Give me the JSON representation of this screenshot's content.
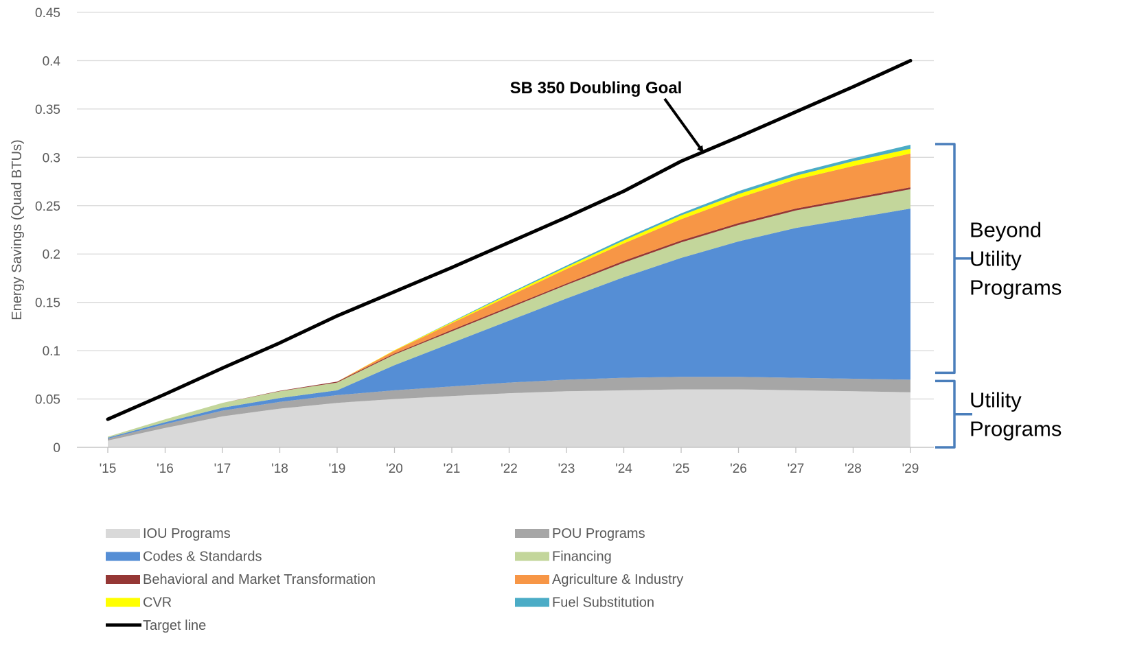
{
  "chart_data": {
    "type": "area",
    "stacked": true,
    "title": "",
    "xlabel": "",
    "ylabel": "Energy Savings (Quad BTUs)",
    "ylim": [
      0,
      0.45
    ],
    "yticks": [
      "0",
      "0.05",
      "0.1",
      "0.15",
      "0.2",
      "0.25",
      "0.3",
      "0.35",
      "0.4",
      "0.45"
    ],
    "categories": [
      "'15",
      "'16",
      "'17",
      "'18",
      "'19",
      "'20",
      "'21",
      "'22",
      "'23",
      "'24",
      "'25",
      "'26",
      "'27",
      "'28",
      "'29"
    ],
    "grid": true,
    "legend_position": "bottom",
    "series": [
      {
        "name": "IOU Programs",
        "color": "#D9D9D9",
        "values": [
          0.007,
          0.02,
          0.032,
          0.04,
          0.046,
          0.05,
          0.053,
          0.056,
          0.058,
          0.059,
          0.06,
          0.06,
          0.059,
          0.058,
          0.057
        ]
      },
      {
        "name": "POU Programs",
        "color": "#A6A6A6",
        "values": [
          0.002,
          0.004,
          0.006,
          0.007,
          0.008,
          0.009,
          0.01,
          0.011,
          0.012,
          0.013,
          0.013,
          0.013,
          0.013,
          0.013,
          0.013
        ]
      },
      {
        "name": "Codes & Standards",
        "color": "#558ED5",
        "values": [
          0.001,
          0.002,
          0.003,
          0.004,
          0.005,
          0.026,
          0.045,
          0.064,
          0.084,
          0.104,
          0.123,
          0.14,
          0.155,
          0.166,
          0.177
        ]
      },
      {
        "name": "Financing",
        "color": "#C3D69B",
        "values": [
          0.001,
          0.003,
          0.005,
          0.007,
          0.008,
          0.011,
          0.012,
          0.013,
          0.014,
          0.015,
          0.016,
          0.017,
          0.018,
          0.019,
          0.02
        ]
      },
      {
        "name": "Behavioral and Market Transformation",
        "color": "#953735",
        "values": [
          0.0,
          0.0,
          0.0,
          0.0005,
          0.001,
          0.001,
          0.0015,
          0.0015,
          0.0015,
          0.002,
          0.002,
          0.002,
          0.002,
          0.002,
          0.002
        ]
      },
      {
        "name": "Agriculture & Industry",
        "color": "#F79646",
        "values": [
          0.0,
          0.0,
          0.0,
          0.0,
          0.0,
          0.003,
          0.007,
          0.011,
          0.015,
          0.018,
          0.022,
          0.026,
          0.03,
          0.033,
          0.035
        ]
      },
      {
        "name": "CVR",
        "color": "#FFFF00",
        "values": [
          0.0,
          0.0,
          0.0,
          0.0,
          0.0,
          0.0005,
          0.001,
          0.002,
          0.002,
          0.003,
          0.004,
          0.004,
          0.004,
          0.005,
          0.005
        ]
      },
      {
        "name": "Fuel Substitution",
        "color": "#4BACC6",
        "values": [
          0.0,
          0.0,
          0.0,
          0.0,
          0.0,
          0.0,
          0.0005,
          0.001,
          0.0015,
          0.002,
          0.002,
          0.003,
          0.003,
          0.003,
          0.004
        ]
      }
    ],
    "target_line": {
      "name": "Target line",
      "color": "#000000",
      "values": [
        0.029,
        0.055,
        0.082,
        0.108,
        0.136,
        0.161,
        0.186,
        0.212,
        0.238,
        0.265,
        0.296,
        0.321,
        0.347,
        0.373,
        0.4
      ]
    },
    "annotations": [
      {
        "text": "SB 350 Doubling Goal",
        "points_to": "'25"
      }
    ],
    "brackets": [
      {
        "label": "Beyond Utility Programs",
        "lines": [
          "Beyond",
          "Utility",
          "Programs"
        ],
        "from": 0.07,
        "to": 0.313
      },
      {
        "label": "Utility Programs",
        "lines": [
          "Utility",
          "Programs"
        ],
        "from": 0.0,
        "to": 0.07
      }
    ]
  }
}
